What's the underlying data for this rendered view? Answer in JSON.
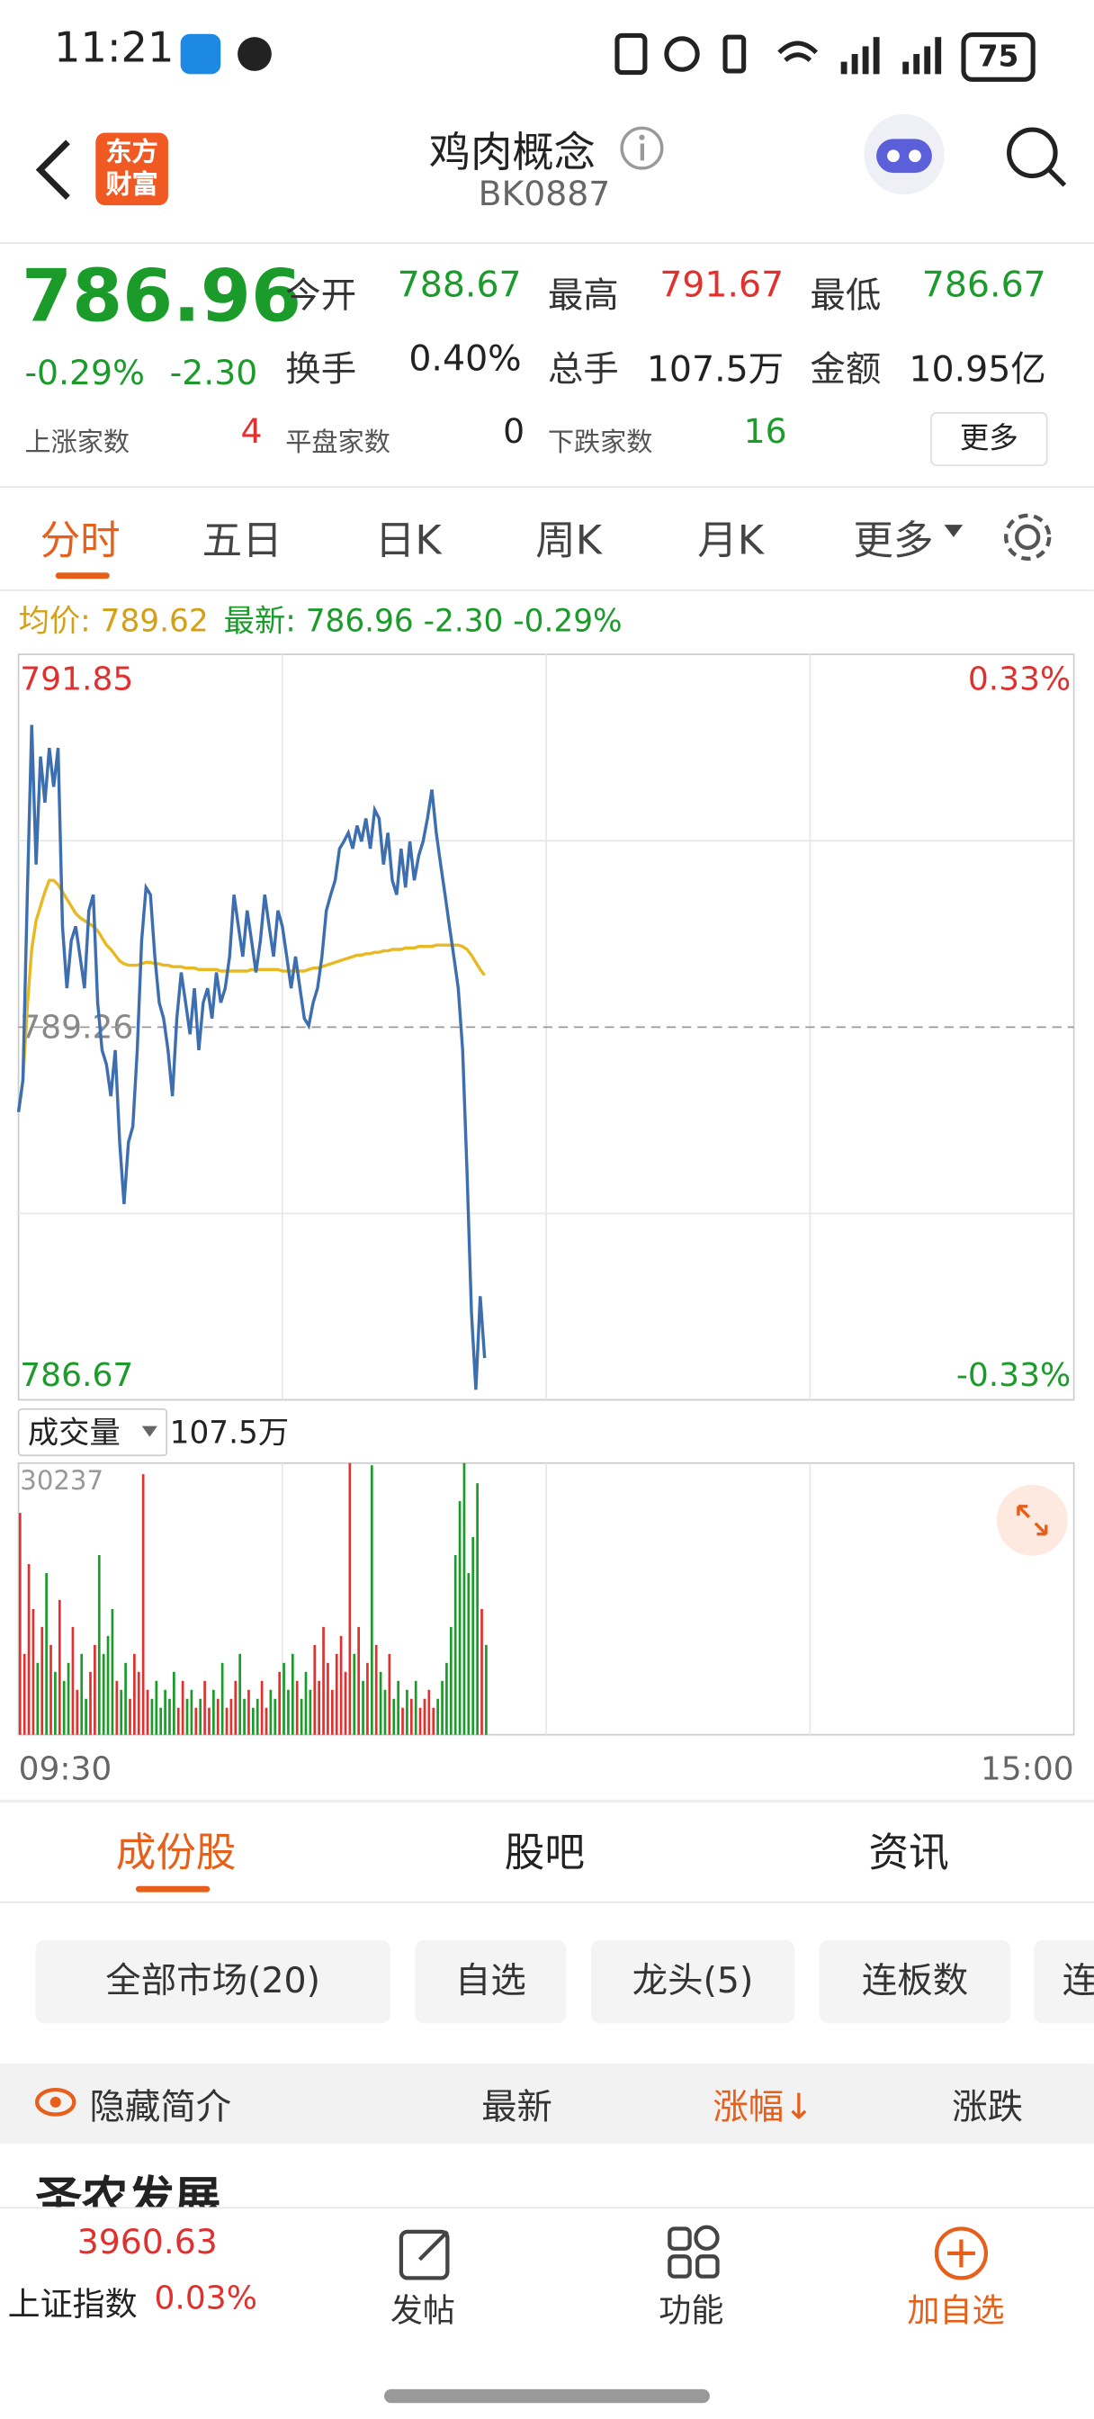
{
  "status": {
    "time": "11:21",
    "battery": "75"
  },
  "header": {
    "logo": [
      "东方",
      "财富"
    ],
    "title": "鸡肉概念",
    "code": "BK0887"
  },
  "quote": {
    "price": "786.96",
    "change_pct": "-0.29%",
    "change": "-2.30",
    "stats": [
      [
        "今开",
        "788.67"
      ],
      [
        "最高",
        "791.67"
      ],
      [
        "最低",
        "786.67"
      ],
      [
        "换手",
        "0.40%"
      ],
      [
        "总手",
        "107.5万"
      ],
      [
        "金额",
        "10.95亿"
      ]
    ],
    "breadth": [
      [
        "上涨家数",
        "4"
      ],
      [
        "平盘家数",
        "0"
      ],
      [
        "下跌家数",
        "16"
      ]
    ],
    "more": "更多"
  },
  "tabs": [
    "分时",
    "五日",
    "日K",
    "周K",
    "月K",
    "更多"
  ],
  "chart_data": {
    "type": "line",
    "avg_label": "均价: 789.62",
    "latest_label": "最新: 786.96 -2.30 -0.29%",
    "xlim": [
      0,
      240
    ],
    "xticks": [
      {
        "value": 0,
        "label": "09:30"
      },
      {
        "value": 240,
        "label": "15:00"
      }
    ],
    "ylim": [
      786.67,
      791.85
    ],
    "yticks": [
      786.67,
      789.26,
      791.85
    ],
    "y2lim": [
      -0.33,
      0.33
    ],
    "y2ticks": [
      {
        "value": -0.33,
        "label": "-0.33%"
      },
      {
        "value": 0.33,
        "label": "0.33%"
      }
    ],
    "grid": true,
    "series": [
      {
        "name": "最新",
        "color": "#3d6fb0",
        "values": [
          788.67,
          788.89,
          790.18,
          791.36,
          790.39,
          791.14,
          790.82,
          791.2,
          790.93,
          791.2,
          789.96,
          789.53,
          789.86,
          789.96,
          789.75,
          789.53,
          790.07,
          790.18,
          789.43,
          789.1,
          789.0,
          788.78,
          789.1,
          788.46,
          788.03,
          788.46,
          788.57,
          789.1,
          789.86,
          790.23,
          790.18,
          789.75,
          789.43,
          789.32,
          789.1,
          788.78,
          789.32,
          789.64,
          789.43,
          789.21,
          789.53,
          789.1,
          789.43,
          789.53,
          789.32,
          789.64,
          789.43,
          789.53,
          789.75,
          790.18,
          789.96,
          789.75,
          790.07,
          789.86,
          789.64,
          789.86,
          790.18,
          789.96,
          789.75,
          790.07,
          789.96,
          789.75,
          789.53,
          789.75,
          789.53,
          789.32,
          789.27,
          789.43,
          789.53,
          789.75,
          790.07,
          790.18,
          790.28,
          790.5,
          790.55,
          790.61,
          790.5,
          790.66,
          790.55,
          790.71,
          790.5,
          790.77,
          790.71,
          790.39,
          790.61,
          790.28,
          790.18,
          790.5,
          790.23,
          790.55,
          790.28,
          790.45,
          790.55,
          790.71,
          790.91,
          790.61,
          790.39,
          790.18,
          789.96,
          789.75,
          789.53,
          789.1,
          788.25,
          787.28,
          786.74,
          787.39,
          786.96
        ]
      },
      {
        "name": "均价",
        "color": "#e8b923",
        "values": [
          788.67,
          788.89,
          789.4,
          789.8,
          790.0,
          790.1,
          790.2,
          790.28,
          790.28,
          790.25,
          790.2,
          790.15,
          790.1,
          790.05,
          790.02,
          790.0,
          789.98,
          789.96,
          789.93,
          789.88,
          789.83,
          789.8,
          789.76,
          789.72,
          789.7,
          789.69,
          789.69,
          789.69,
          789.7,
          789.71,
          789.71,
          789.7,
          789.7,
          789.69,
          789.69,
          789.68,
          789.68,
          789.68,
          789.67,
          789.67,
          789.67,
          789.66,
          789.66,
          789.66,
          789.66,
          789.66,
          789.65,
          789.65,
          789.65,
          789.65,
          789.65,
          789.65,
          789.65,
          789.66,
          789.66,
          789.66,
          789.66,
          789.66,
          789.66,
          789.66,
          789.65,
          789.65,
          789.65,
          789.65,
          789.65,
          789.65,
          789.66,
          789.67,
          789.67,
          789.68,
          789.69,
          789.7,
          789.71,
          789.72,
          789.73,
          789.74,
          789.75,
          789.76,
          789.76,
          789.77,
          789.77,
          789.78,
          789.78,
          789.79,
          789.79,
          789.8,
          789.8,
          789.8,
          789.81,
          789.81,
          789.81,
          789.82,
          789.82,
          789.82,
          789.82,
          789.83,
          789.83,
          789.83,
          789.83,
          789.83,
          789.83,
          789.82,
          789.8,
          789.76,
          789.71,
          789.66,
          789.62
        ]
      }
    ],
    "volume": {
      "label": "成交量",
      "total": "107.5万",
      "up_color": "#e0312e",
      "down_color": "#1a9b2a",
      "ylim": [
        0,
        30237
      ],
      "yticks": [
        30237
      ],
      "values": [
        24700,
        9000,
        19000,
        14000,
        8000,
        12000,
        18000,
        10000,
        7000,
        15000,
        6000,
        8000,
        12000,
        5000,
        9000,
        4000,
        7000,
        10000,
        20000,
        9000,
        11000,
        14000,
        6000,
        5000,
        8000,
        4000,
        9000,
        7000,
        29000,
        5000,
        4000,
        6000,
        3000,
        5000,
        4000,
        7000,
        3000,
        6000,
        4000,
        5000,
        3000,
        4000,
        6000,
        3000,
        5000,
        4000,
        8000,
        3000,
        4000,
        6000,
        9000,
        4000,
        5000,
        3000,
        4000,
        6000,
        3000,
        5000,
        4000,
        7000,
        8000,
        5000,
        9000,
        6000,
        4000,
        7000,
        5000,
        10000,
        6000,
        12000,
        8000,
        5000,
        9000,
        11000,
        7000,
        30237,
        9000,
        12000,
        6000,
        8000,
        30000,
        10000,
        7000,
        5000,
        9000,
        4000,
        6000,
        3000,
        5000,
        4000,
        6000,
        3000,
        4000,
        5000,
        3000,
        4000,
        6000,
        8000,
        12000,
        20000,
        26000,
        30237,
        18000,
        22000,
        28000,
        14000,
        10000
      ]
    }
  },
  "sections": [
    "成份股",
    "股吧",
    "资讯"
  ],
  "filters": [
    "全部市场(20)",
    "自选",
    "龙头(5)",
    "连板数",
    "连"
  ],
  "table": {
    "columns": [
      "隐藏简介",
      "最新",
      "涨幅↓",
      "涨跌"
    ],
    "rows": [
      [
        "圣农发展"
      ]
    ]
  },
  "bottom": {
    "index_value": "3960.63",
    "index_name": "上证指数",
    "index_pct": "0.03%",
    "nav": [
      "发帖",
      "功能",
      "加自选"
    ]
  }
}
